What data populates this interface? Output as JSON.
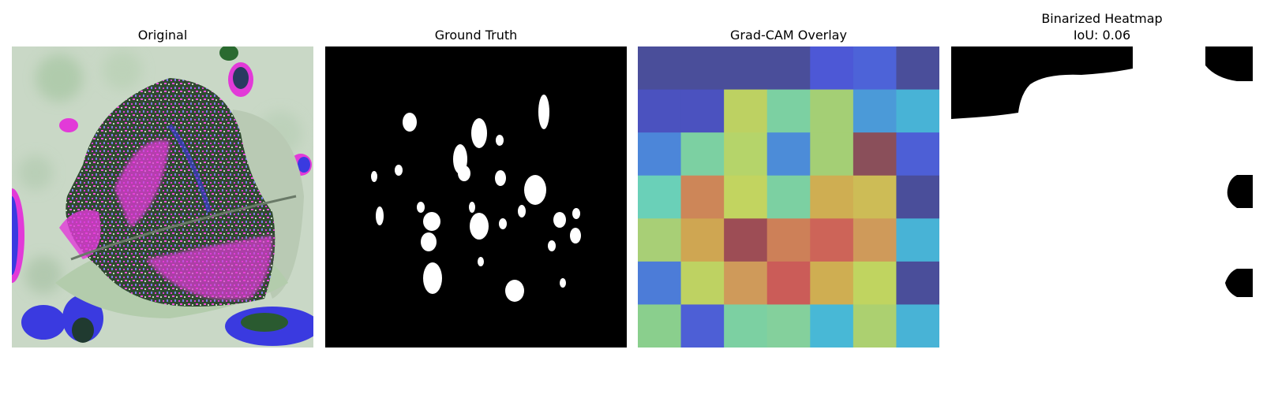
{
  "panels": [
    {
      "title": "Original"
    },
    {
      "title": "Ground Truth"
    },
    {
      "title": "Grad-CAM Overlay"
    },
    {
      "title": "Binarized Heatmap",
      "subtitle": "IoU: 0.06"
    }
  ],
  "gradcam": {
    "grid": [
      [
        "#4a4e9a",
        "#4a4e9a",
        "#4a4e9a",
        "#4a4e9a",
        "#4d58d6",
        "#4d63d8",
        "#4a4e9a"
      ],
      [
        "#4b52bf",
        "#4b52bf",
        "#bdd162",
        "#7cd0a2",
        "#a4cf75",
        "#4b9ad8",
        "#48b3d6"
      ],
      [
        "#4c86d9",
        "#7cd0a2",
        "#b5d46a",
        "#4c8cd8",
        "#a4cf75",
        "#8a4f5a",
        "#4d5fd6"
      ],
      [
        "#6ad0b8",
        "#cd8658",
        "#c2d460",
        "#7cd0a2",
        "#cfae52",
        "#cdbc56",
        "#4a4e9a"
      ],
      [
        "#a8cf76",
        "#cfa652",
        "#9d4d55",
        "#cd8058",
        "#cd6458",
        "#cf9a5a",
        "#48b3d6"
      ],
      [
        "#4c7cd8",
        "#bed262",
        "#cf9a5a",
        "#cb5c58",
        "#cfae52",
        "#c0d460",
        "#4a4e9a"
      ],
      [
        "#8acf8d",
        "#4d5fd6",
        "#7cd0a2",
        "#84d09c",
        "#48b8d6",
        "#acd070",
        "#48b3d6"
      ]
    ]
  }
}
